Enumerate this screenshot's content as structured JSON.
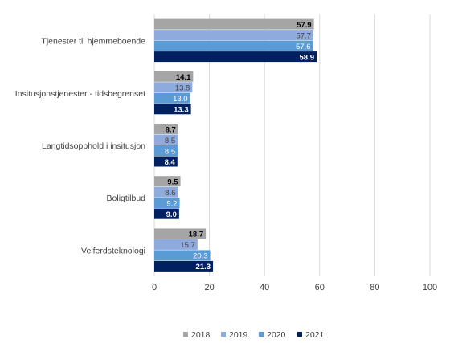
{
  "chart_data": {
    "type": "bar",
    "orientation": "horizontal",
    "categories": [
      "Tjenester til hjemmeboende",
      "Insitusjonstjenester - tidsbegrenset",
      "Langtidsopphold i insitusjon",
      "Boligtilbud",
      "Velferdsteknologi"
    ],
    "series": [
      {
        "name": "2018",
        "color": "#a5a5a5",
        "label_color": "#000000",
        "values": [
          57.9,
          14.1,
          8.7,
          9.5,
          18.7
        ]
      },
      {
        "name": "2019",
        "color": "#8faadc",
        "label_color": "#404040",
        "values": [
          57.7,
          13.8,
          8.5,
          8.6,
          15.7
        ]
      },
      {
        "name": "2020",
        "color": "#5b9bd5",
        "label_color": "#ffffff",
        "values": [
          57.6,
          13.0,
          8.5,
          9.2,
          20.3
        ]
      },
      {
        "name": "2021",
        "color": "#002060",
        "label_color": "#ffffff",
        "values": [
          58.9,
          13.3,
          8.4,
          9.0,
          21.3
        ]
      }
    ],
    "x_ticks": [
      "0",
      "20",
      "40",
      "60",
      "80",
      "100"
    ],
    "xlim": [
      0,
      100
    ],
    "grid": true,
    "legend_position": "bottom"
  }
}
